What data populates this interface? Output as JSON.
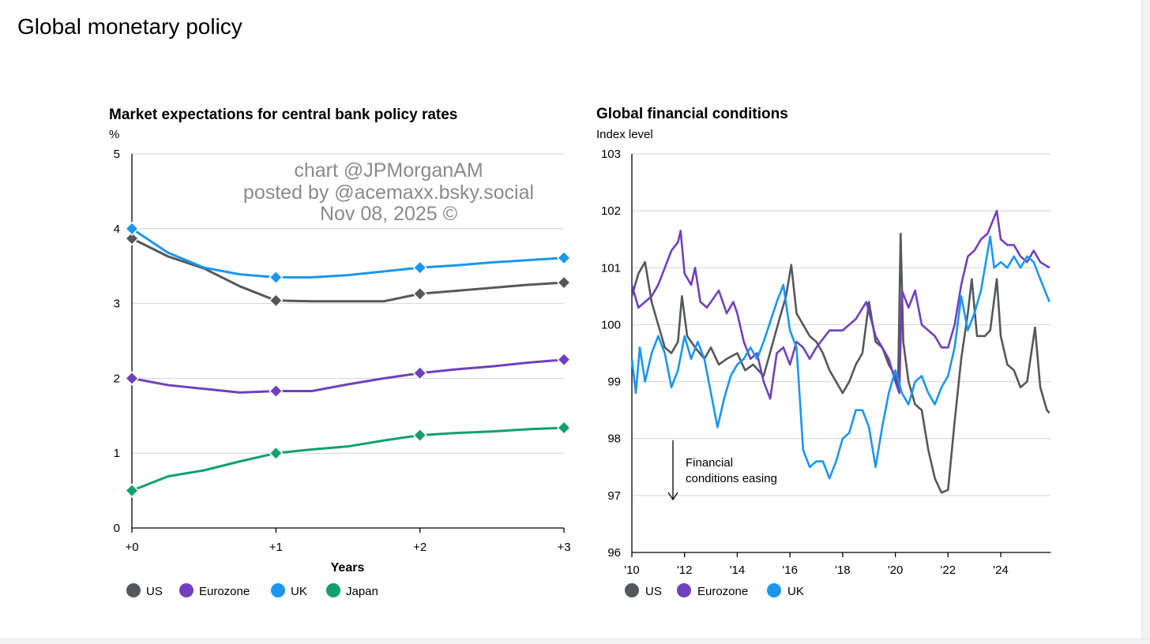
{
  "page_title": "Global monetary policy",
  "watermark": [
    "chart @JPMorganAM",
    "posted by @acemaxx.bsky.social",
    "Nov 08, 2025 ©"
  ],
  "colors": {
    "US": "#55585b",
    "Eurozone": "#7040bf",
    "UK": "#1b96f0",
    "Japan": "#10a06b"
  },
  "chart_data": [
    {
      "type": "line",
      "title": "Market expectations for central bank policy rates",
      "ylabel": "%",
      "xlabel": "Years",
      "ylim": [
        0,
        5
      ],
      "yticks": [
        0,
        1,
        2,
        3,
        4,
        5
      ],
      "xlim": [
        0,
        3
      ],
      "xticks": [
        0,
        1,
        2,
        3
      ],
      "xtick_labels": [
        "+0",
        "+1",
        "+2",
        "+3"
      ],
      "grid": true,
      "legend_position": "bottom-left",
      "marker_x": [
        0,
        1,
        2,
        3
      ],
      "x": [
        0,
        0.25,
        0.5,
        0.75,
        1,
        1.25,
        1.5,
        1.75,
        2,
        2.25,
        2.5,
        2.75,
        3
      ],
      "series": [
        {
          "name": "US",
          "values": [
            3.87,
            3.63,
            3.47,
            3.23,
            3.04,
            3.03,
            3.03,
            3.03,
            3.13,
            3.17,
            3.21,
            3.25,
            3.28
          ]
        },
        {
          "name": "Eurozone",
          "values": [
            2.0,
            1.91,
            1.86,
            1.81,
            1.83,
            1.83,
            1.92,
            2.0,
            2.07,
            2.12,
            2.16,
            2.21,
            2.25
          ]
        },
        {
          "name": "UK",
          "values": [
            4.0,
            3.68,
            3.48,
            3.39,
            3.35,
            3.35,
            3.38,
            3.43,
            3.48,
            3.51,
            3.55,
            3.58,
            3.61
          ]
        },
        {
          "name": "Japan",
          "values": [
            0.5,
            0.69,
            0.77,
            0.89,
            1.0,
            1.05,
            1.09,
            1.17,
            1.24,
            1.27,
            1.29,
            1.32,
            1.34
          ]
        }
      ]
    },
    {
      "type": "line",
      "title": "Global financial conditions",
      "ylabel": "Index level",
      "ylim": [
        96,
        103
      ],
      "yticks": [
        96,
        97,
        98,
        99,
        100,
        101,
        102,
        103
      ],
      "xlim": [
        2010,
        2025.9
      ],
      "xticks": [
        2010,
        2012,
        2014,
        2016,
        2018,
        2020,
        2022,
        2024
      ],
      "xtick_labels": [
        "'10",
        "'12",
        "'14",
        "'16",
        "'18",
        "'20",
        "'22",
        "'24"
      ],
      "grid": true,
      "legend_position": "bottom-left",
      "annotation": [
        "Financial",
        "conditions easing"
      ],
      "series": [
        {
          "name": "US",
          "points": [
            [
              2010,
              100.5
            ],
            [
              2010.25,
              100.9
            ],
            [
              2010.5,
              101.1
            ],
            [
              2010.75,
              100.4
            ],
            [
              2011,
              100.0
            ],
            [
              2011.25,
              99.6
            ],
            [
              2011.5,
              99.5
            ],
            [
              2011.75,
              99.7
            ],
            [
              2011.9,
              100.5
            ],
            [
              2012.1,
              99.8
            ],
            [
              2012.4,
              99.6
            ],
            [
              2012.75,
              99.4
            ],
            [
              2013,
              99.6
            ],
            [
              2013.3,
              99.3
            ],
            [
              2013.6,
              99.4
            ],
            [
              2014,
              99.5
            ],
            [
              2014.3,
              99.2
            ],
            [
              2014.6,
              99.3
            ],
            [
              2015,
              99.1
            ],
            [
              2015.3,
              99.6
            ],
            [
              2015.6,
              100.1
            ],
            [
              2015.85,
              100.5
            ],
            [
              2016.05,
              101.05
            ],
            [
              2016.25,
              100.2
            ],
            [
              2016.5,
              100.0
            ],
            [
              2016.75,
              99.8
            ],
            [
              2017,
              99.7
            ],
            [
              2017.25,
              99.5
            ],
            [
              2017.5,
              99.2
            ],
            [
              2017.75,
              99.0
            ],
            [
              2018,
              98.8
            ],
            [
              2018.25,
              99.0
            ],
            [
              2018.5,
              99.3
            ],
            [
              2018.75,
              99.5
            ],
            [
              2019,
              100.4
            ],
            [
              2019.25,
              99.7
            ],
            [
              2019.5,
              99.6
            ],
            [
              2019.75,
              99.3
            ],
            [
              2020,
              99.1
            ],
            [
              2020.1,
              98.9
            ],
            [
              2020.2,
              101.6
            ],
            [
              2020.3,
              99.7
            ],
            [
              2020.5,
              99.0
            ],
            [
              2020.75,
              98.6
            ],
            [
              2021,
              98.5
            ],
            [
              2021.25,
              97.8
            ],
            [
              2021.5,
              97.3
            ],
            [
              2021.75,
              97.05
            ],
            [
              2022,
              97.1
            ],
            [
              2022.25,
              98.3
            ],
            [
              2022.5,
              99.4
            ],
            [
              2022.75,
              100.2
            ],
            [
              2022.9,
              100.8
            ],
            [
              2023.1,
              99.8
            ],
            [
              2023.4,
              99.8
            ],
            [
              2023.6,
              99.9
            ],
            [
              2023.85,
              100.8
            ],
            [
              2024,
              99.8
            ],
            [
              2024.25,
              99.3
            ],
            [
              2024.5,
              99.2
            ],
            [
              2024.75,
              98.9
            ],
            [
              2025,
              99.0
            ],
            [
              2025.3,
              99.95
            ],
            [
              2025.5,
              98.9
            ],
            [
              2025.75,
              98.5
            ],
            [
              2025.85,
              98.45
            ]
          ]
        },
        {
          "name": "Eurozone",
          "points": [
            [
              2010,
              100.7
            ],
            [
              2010.25,
              100.3
            ],
            [
              2010.5,
              100.4
            ],
            [
              2010.75,
              100.5
            ],
            [
              2011,
              100.7
            ],
            [
              2011.25,
              101.0
            ],
            [
              2011.5,
              101.3
            ],
            [
              2011.75,
              101.45
            ],
            [
              2011.85,
              101.65
            ],
            [
              2012,
              100.9
            ],
            [
              2012.25,
              100.7
            ],
            [
              2012.4,
              101.0
            ],
            [
              2012.6,
              100.4
            ],
            [
              2012.85,
              100.3
            ],
            [
              2013,
              100.4
            ],
            [
              2013.3,
              100.6
            ],
            [
              2013.6,
              100.2
            ],
            [
              2013.85,
              100.4
            ],
            [
              2014,
              100.2
            ],
            [
              2014.25,
              99.7
            ],
            [
              2014.5,
              99.4
            ],
            [
              2014.75,
              99.5
            ],
            [
              2015,
              99.0
            ],
            [
              2015.25,
              98.7
            ],
            [
              2015.5,
              99.5
            ],
            [
              2015.75,
              99.6
            ],
            [
              2016,
              99.3
            ],
            [
              2016.25,
              99.7
            ],
            [
              2016.5,
              99.6
            ],
            [
              2016.75,
              99.4
            ],
            [
              2017,
              99.6
            ],
            [
              2017.5,
              99.9
            ],
            [
              2018,
              99.9
            ],
            [
              2018.5,
              100.1
            ],
            [
              2018.9,
              100.4
            ],
            [
              2019.25,
              99.8
            ],
            [
              2019.5,
              99.6
            ],
            [
              2019.75,
              99.4
            ],
            [
              2020,
              99.0
            ],
            [
              2020.15,
              98.8
            ],
            [
              2020.25,
              100.6
            ],
            [
              2020.5,
              100.3
            ],
            [
              2020.75,
              100.6
            ],
            [
              2021,
              100.0
            ],
            [
              2021.25,
              99.9
            ],
            [
              2021.5,
              99.8
            ],
            [
              2021.75,
              99.6
            ],
            [
              2022,
              99.6
            ],
            [
              2022.25,
              100.0
            ],
            [
              2022.5,
              100.7
            ],
            [
              2022.75,
              101.2
            ],
            [
              2023,
              101.3
            ],
            [
              2023.25,
              101.5
            ],
            [
              2023.5,
              101.6
            ],
            [
              2023.85,
              102.0
            ],
            [
              2024,
              101.5
            ],
            [
              2024.25,
              101.4
            ],
            [
              2024.5,
              101.4
            ],
            [
              2024.75,
              101.2
            ],
            [
              2025,
              101.1
            ],
            [
              2025.25,
              101.3
            ],
            [
              2025.5,
              101.1
            ],
            [
              2025.85,
              101.0
            ]
          ]
        },
        {
          "name": "UK",
          "points": [
            [
              2010,
              99.4
            ],
            [
              2010.15,
              98.8
            ],
            [
              2010.3,
              99.6
            ],
            [
              2010.5,
              99.0
            ],
            [
              2010.75,
              99.5
            ],
            [
              2011,
              99.8
            ],
            [
              2011.25,
              99.5
            ],
            [
              2011.5,
              98.9
            ],
            [
              2011.75,
              99.2
            ],
            [
              2012,
              99.8
            ],
            [
              2012.25,
              99.4
            ],
            [
              2012.5,
              99.7
            ],
            [
              2012.75,
              99.4
            ],
            [
              2013,
              98.8
            ],
            [
              2013.25,
              98.2
            ],
            [
              2013.5,
              98.7
            ],
            [
              2013.75,
              99.1
            ],
            [
              2014,
              99.3
            ],
            [
              2014.25,
              99.4
            ],
            [
              2014.5,
              99.6
            ],
            [
              2014.75,
              99.4
            ],
            [
              2015,
              99.7
            ],
            [
              2015.5,
              100.4
            ],
            [
              2015.75,
              100.7
            ],
            [
              2016,
              99.9
            ],
            [
              2016.25,
              99.6
            ],
            [
              2016.5,
              97.8
            ],
            [
              2016.75,
              97.5
            ],
            [
              2017,
              97.6
            ],
            [
              2017.25,
              97.6
            ],
            [
              2017.5,
              97.3
            ],
            [
              2017.75,
              97.6
            ],
            [
              2018,
              98.0
            ],
            [
              2018.25,
              98.1
            ],
            [
              2018.5,
              98.5
            ],
            [
              2018.75,
              98.5
            ],
            [
              2019,
              98.2
            ],
            [
              2019.25,
              97.5
            ],
            [
              2019.5,
              98.2
            ],
            [
              2019.75,
              98.8
            ],
            [
              2020,
              99.2
            ],
            [
              2020.25,
              98.8
            ],
            [
              2020.5,
              98.6
            ],
            [
              2020.75,
              99.0
            ],
            [
              2021,
              99.1
            ],
            [
              2021.25,
              98.8
            ],
            [
              2021.5,
              98.6
            ],
            [
              2021.75,
              98.9
            ],
            [
              2022,
              99.1
            ],
            [
              2022.25,
              99.6
            ],
            [
              2022.5,
              100.5
            ],
            [
              2022.75,
              99.9
            ],
            [
              2023,
              100.2
            ],
            [
              2023.25,
              100.6
            ],
            [
              2023.6,
              101.55
            ],
            [
              2023.75,
              101.0
            ],
            [
              2024,
              101.1
            ],
            [
              2024.25,
              101.0
            ],
            [
              2024.5,
              101.2
            ],
            [
              2024.75,
              101.0
            ],
            [
              2025,
              101.2
            ],
            [
              2025.25,
              101.1
            ],
            [
              2025.5,
              100.8
            ],
            [
              2025.85,
              100.4
            ]
          ]
        }
      ]
    }
  ]
}
